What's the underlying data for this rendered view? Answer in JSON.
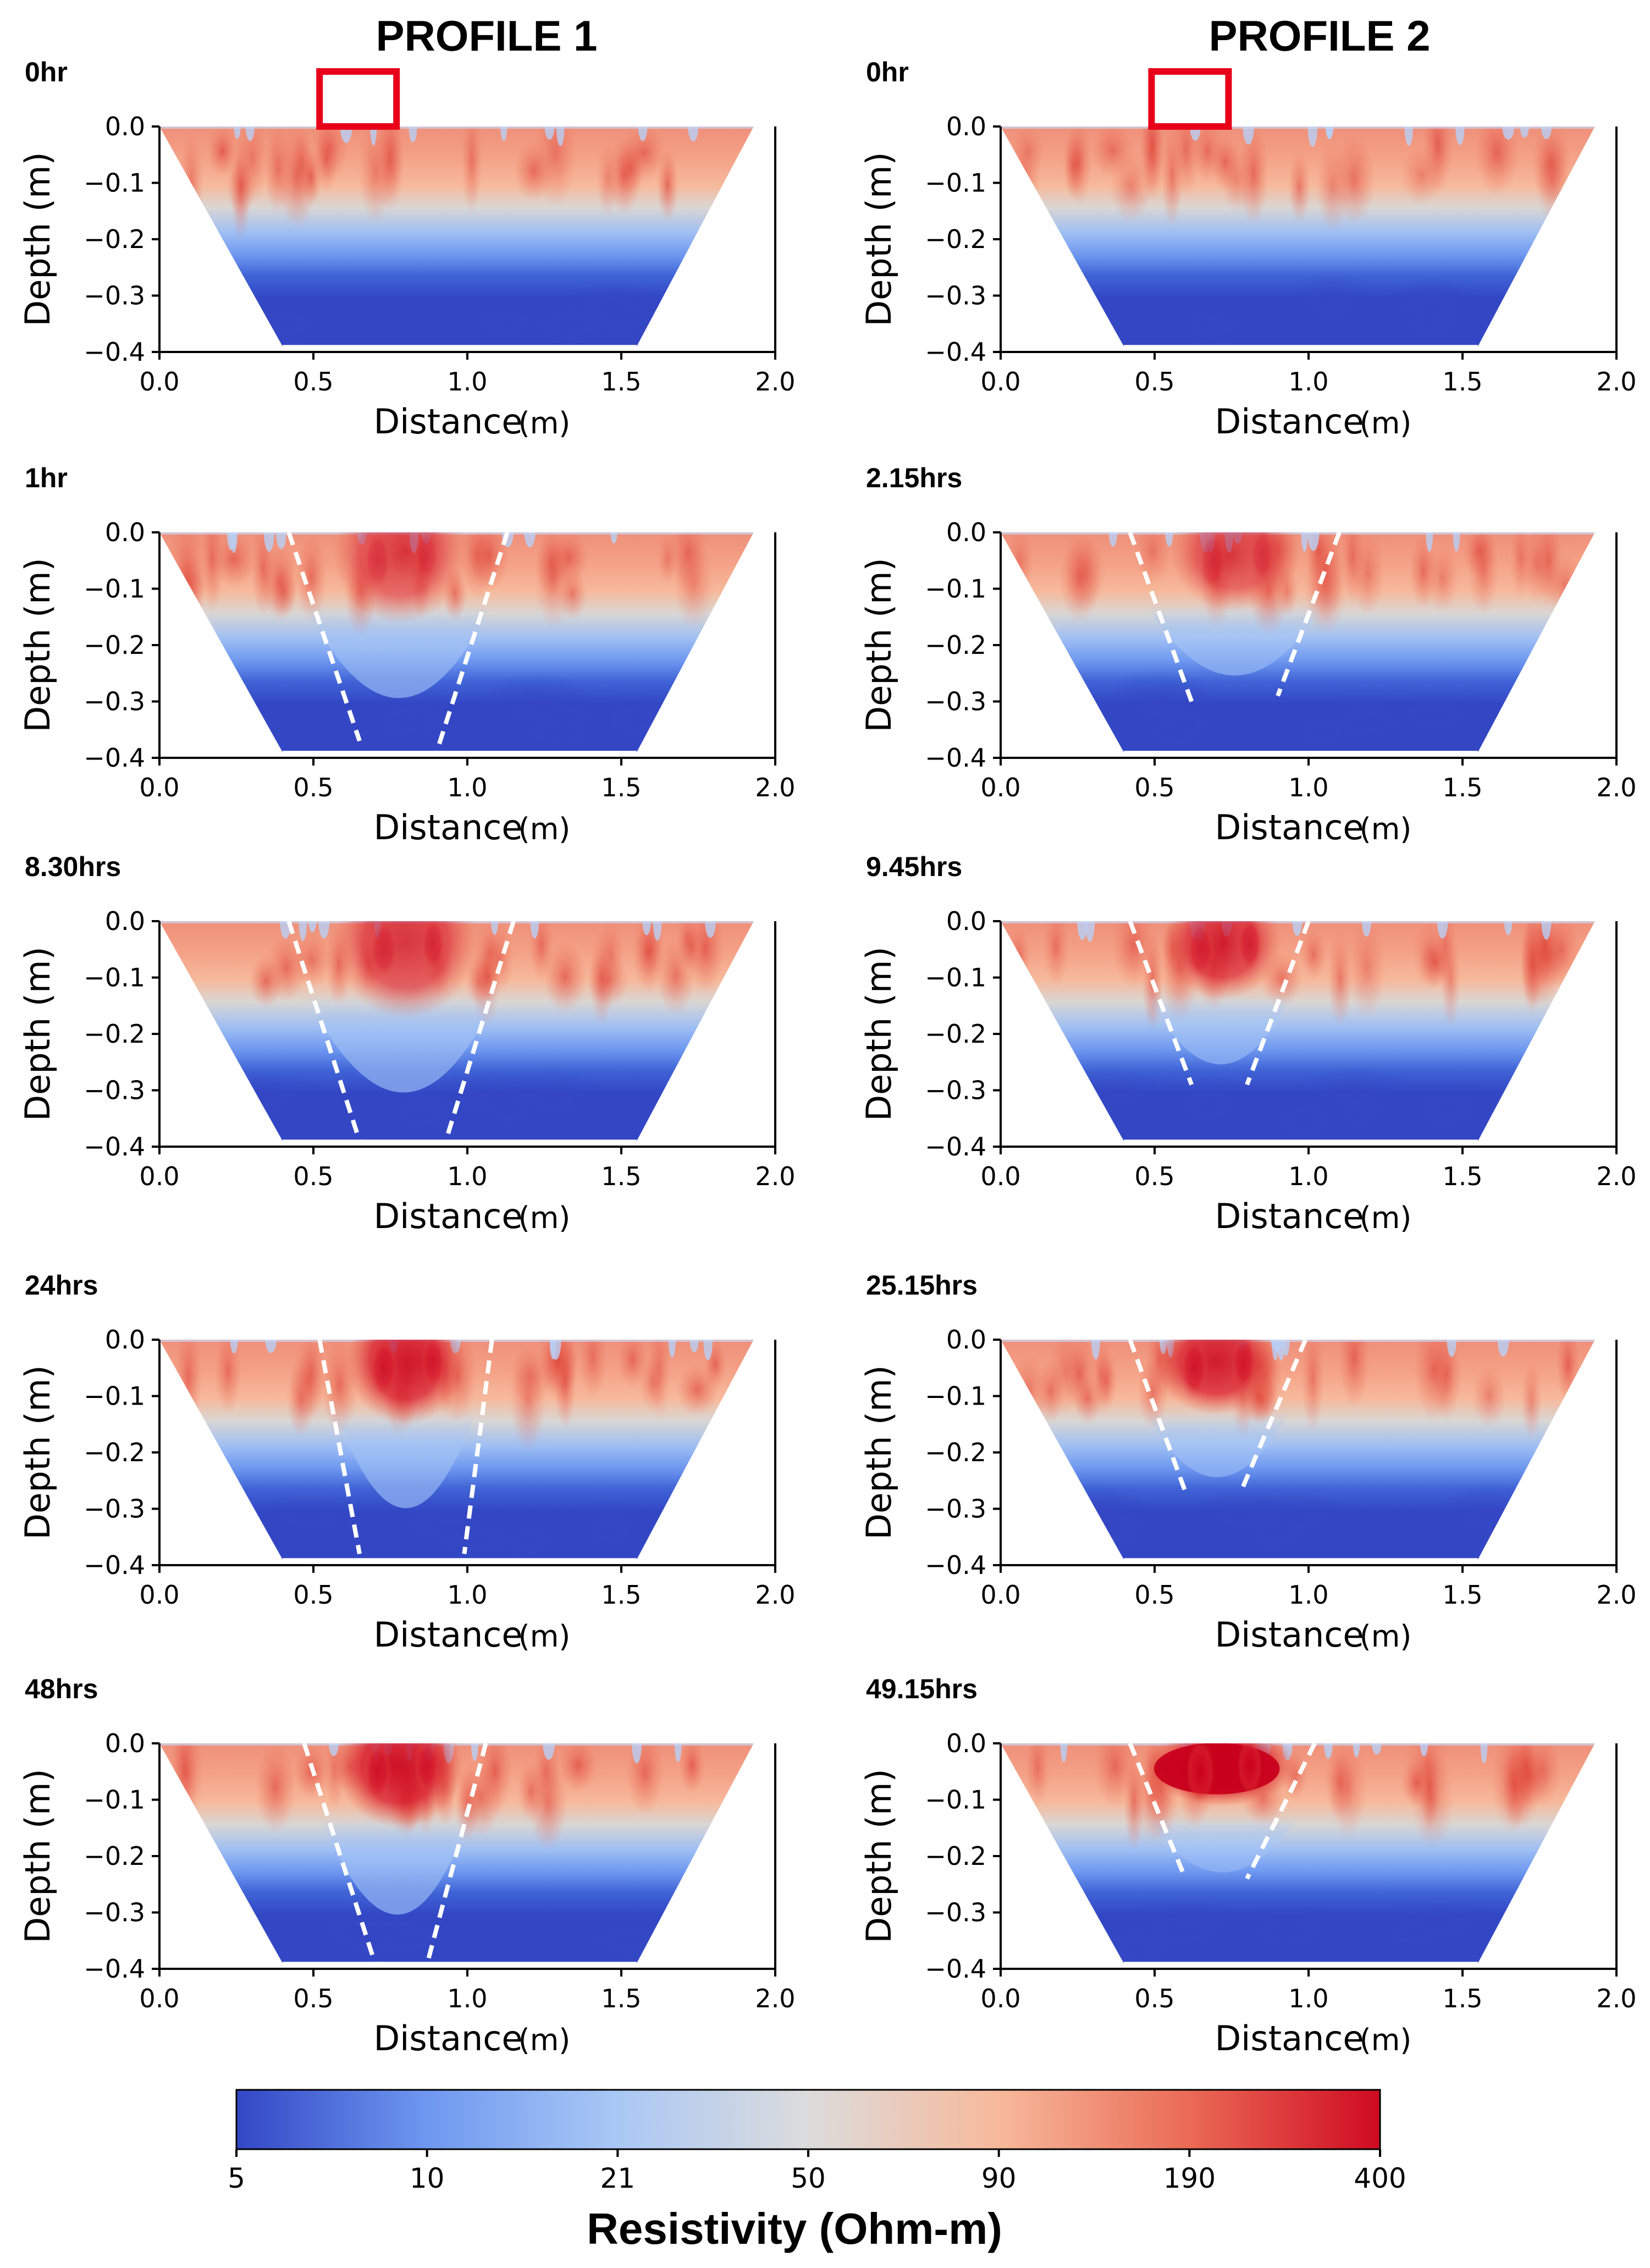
{
  "figure": {
    "profile_titles": [
      "PROFILE 1",
      "PROFILE 2"
    ],
    "target_box_color": "#e8001a",
    "boundary_line_color": "#ffffff"
  },
  "colorbar": {
    "title": "Resistivity (Ohm-m)",
    "ticks": [
      "5",
      "10",
      "21",
      "50",
      "90",
      "190",
      "400"
    ],
    "colors": [
      "#3347c5",
      "#6e98f0",
      "#aac8f5",
      "#dcdcdc",
      "#f7b99b",
      "#ea6a55",
      "#cf0a22"
    ]
  },
  "chart_data": [
    {
      "type": "heatmap",
      "profile": "PROFILE 1",
      "time_label": "0hr",
      "xlabel": "Distance",
      "xunit": "(m)",
      "ylabel": "Depth (m)",
      "xlim": [
        0.0,
        2.0
      ],
      "ylim": [
        -0.4,
        0.0
      ],
      "xticks": [
        "0.0",
        "0.5",
        "1.0",
        "1.5",
        "2.0"
      ],
      "yticks": [
        "0.0",
        "−0.1",
        "−0.2",
        "−0.3",
        "−0.4"
      ],
      "section_top_x": [
        0.0,
        1.93
      ],
      "section_bottom_x": [
        0.4,
        1.55
      ],
      "target_box_x": [
        0.52,
        0.77
      ],
      "anomaly": null
    },
    {
      "type": "heatmap",
      "profile": "PROFILE 2",
      "time_label": "0hr",
      "xlabel": "Distance",
      "xunit": "(m)",
      "ylabel": "Depth (m)",
      "xlim": [
        0.0,
        2.0
      ],
      "ylim": [
        -0.4,
        0.0
      ],
      "xticks": [
        "0.0",
        "0.5",
        "1.0",
        "1.5",
        "2.0"
      ],
      "yticks": [
        "0.0",
        "−0.1",
        "−0.2",
        "−0.3",
        "−0.4"
      ],
      "section_top_x": [
        0.0,
        1.93
      ],
      "section_bottom_x": [
        0.4,
        1.55
      ],
      "target_box_x": [
        0.49,
        0.74
      ],
      "anomaly": null
    },
    {
      "type": "heatmap",
      "profile": "PROFILE 1",
      "time_label": "1hr",
      "xlabel": "Distance",
      "xunit": "(m)",
      "ylabel": "Depth (m)",
      "xlim": [
        0.0,
        2.0
      ],
      "ylim": [
        -0.4,
        0.0
      ],
      "xticks": [
        "0.0",
        "0.5",
        "1.0",
        "1.5",
        "2.0"
      ],
      "yticks": [
        "0.0",
        "−0.1",
        "−0.2",
        "−0.3",
        "−0.4"
      ],
      "section_top_x": [
        0.0,
        1.93
      ],
      "section_bottom_x": [
        0.4,
        1.55
      ],
      "anomaly": {
        "left_top": [
          0.42,
          0.0
        ],
        "left_bottom": [
          0.65,
          -0.37
        ],
        "right_top": [
          1.13,
          0.0
        ],
        "right_bottom": [
          0.9,
          -0.39
        ],
        "center": 0.78,
        "depth": 0.22,
        "intensity": 0.25
      }
    },
    {
      "type": "heatmap",
      "profile": "PROFILE 2",
      "time_label": "2.15hrs",
      "xlabel": "Distance",
      "xunit": "(m)",
      "ylabel": "Depth (m)",
      "xlim": [
        0.0,
        2.0
      ],
      "ylim": [
        -0.4,
        0.0
      ],
      "xticks": [
        "0.0",
        "0.5",
        "1.0",
        "1.5",
        "2.0"
      ],
      "yticks": [
        "0.0",
        "−0.1",
        "−0.2",
        "−0.3",
        "−0.4"
      ],
      "section_top_x": [
        0.0,
        1.93
      ],
      "section_bottom_x": [
        0.4,
        1.55
      ],
      "anomaly": {
        "left_top": [
          0.42,
          0.0
        ],
        "left_bottom": [
          0.62,
          -0.3
        ],
        "right_top": [
          1.1,
          0.0
        ],
        "right_bottom": [
          0.9,
          -0.29
        ],
        "center": 0.76,
        "depth": 0.18,
        "intensity": 0.25
      }
    },
    {
      "type": "heatmap",
      "profile": "PROFILE 1",
      "time_label": "8.30hrs",
      "xlabel": "Distance",
      "xunit": "(m)",
      "ylabel": "Depth (m)",
      "xlim": [
        0.0,
        2.0
      ],
      "ylim": [
        -0.4,
        0.0
      ],
      "xticks": [
        "0.0",
        "0.5",
        "1.0",
        "1.5",
        "2.0"
      ],
      "yticks": [
        "0.0",
        "−0.1",
        "−0.2",
        "−0.3",
        "−0.4"
      ],
      "section_top_x": [
        0.0,
        1.93
      ],
      "section_bottom_x": [
        0.4,
        1.55
      ],
      "anomaly": {
        "left_top": [
          0.42,
          0.0
        ],
        "left_bottom": [
          0.65,
          -0.39
        ],
        "right_top": [
          1.15,
          0.0
        ],
        "right_bottom": [
          0.93,
          -0.39
        ],
        "center": 0.8,
        "depth": 0.24,
        "intensity": 0.35
      }
    },
    {
      "type": "heatmap",
      "profile": "PROFILE 2",
      "time_label": "9.45hrs",
      "xlabel": "Distance",
      "xunit": "(m)",
      "ylabel": "Depth (m)",
      "xlim": [
        0.0,
        2.0
      ],
      "ylim": [
        -0.4,
        0.0
      ],
      "xticks": [
        "0.0",
        "0.5",
        "1.0",
        "1.5",
        "2.0"
      ],
      "yticks": [
        "0.0",
        "−0.1",
        "−0.2",
        "−0.3",
        "−0.4"
      ],
      "section_top_x": [
        0.0,
        1.93
      ],
      "section_bottom_x": [
        0.4,
        1.55
      ],
      "anomaly": {
        "left_top": [
          0.42,
          0.0
        ],
        "left_bottom": [
          0.62,
          -0.29
        ],
        "right_top": [
          1.0,
          0.0
        ],
        "right_bottom": [
          0.8,
          -0.29
        ],
        "center": 0.72,
        "depth": 0.18,
        "intensity": 0.45
      }
    },
    {
      "type": "heatmap",
      "profile": "PROFILE 1",
      "time_label": "24hrs",
      "xlabel": "Distance",
      "xunit": "(m)",
      "ylabel": "Depth (m)",
      "xlim": [
        0.0,
        2.0
      ],
      "ylim": [
        -0.4,
        0.0
      ],
      "xticks": [
        "0.0",
        "0.5",
        "1.0",
        "1.5",
        "2.0"
      ],
      "yticks": [
        "0.0",
        "−0.1",
        "−0.2",
        "−0.3",
        "−0.4"
      ],
      "section_top_x": [
        0.0,
        1.93
      ],
      "section_bottom_x": [
        0.4,
        1.55
      ],
      "anomaly": {
        "left_top": [
          0.52,
          0.0
        ],
        "left_bottom": [
          0.65,
          -0.38
        ],
        "right_top": [
          1.08,
          0.0
        ],
        "right_bottom": [
          0.99,
          -0.38
        ],
        "center": 0.8,
        "depth": 0.2,
        "intensity": 0.55
      }
    },
    {
      "type": "heatmap",
      "profile": "PROFILE 2",
      "time_label": "25.15hrs",
      "xlabel": "Distance",
      "xunit": "(m)",
      "ylabel": "Depth (m)",
      "xlim": [
        0.0,
        2.0
      ],
      "ylim": [
        -0.4,
        0.0
      ],
      "xticks": [
        "0.0",
        "0.5",
        "1.0",
        "1.5",
        "2.0"
      ],
      "yticks": [
        "0.0",
        "−0.1",
        "−0.2",
        "−0.3",
        "−0.4"
      ],
      "section_top_x": [
        0.0,
        1.93
      ],
      "section_bottom_x": [
        0.4,
        1.55
      ],
      "anomaly": {
        "left_top": [
          0.42,
          0.0
        ],
        "left_bottom": [
          0.6,
          -0.27
        ],
        "right_top": [
          0.99,
          0.0
        ],
        "right_bottom": [
          0.78,
          -0.27
        ],
        "center": 0.7,
        "depth": 0.17,
        "intensity": 0.55
      }
    },
    {
      "type": "heatmap",
      "profile": "PROFILE 1",
      "time_label": "48hrs",
      "xlabel": "Distance",
      "xunit": "(m)",
      "ylabel": "Depth (m)",
      "xlim": [
        0.0,
        2.0
      ],
      "ylim": [
        -0.4,
        0.0
      ],
      "xticks": [
        "0.0",
        "0.5",
        "1.0",
        "1.5",
        "2.0"
      ],
      "yticks": [
        "0.0",
        "−0.1",
        "−0.2",
        "−0.3",
        "−0.4"
      ],
      "section_top_x": [
        0.0,
        1.93
      ],
      "section_bottom_x": [
        0.4,
        1.55
      ],
      "anomaly": {
        "left_top": [
          0.47,
          0.0
        ],
        "left_bottom": [
          0.7,
          -0.39
        ],
        "right_top": [
          1.06,
          0.0
        ],
        "right_bottom": [
          0.87,
          -0.39
        ],
        "center": 0.78,
        "depth": 0.2,
        "intensity": 0.6
      }
    },
    {
      "type": "heatmap",
      "profile": "PROFILE 2",
      "time_label": "49.15hrs",
      "xlabel": "Distance",
      "xunit": "(m)",
      "ylabel": "Depth (m)",
      "xlim": [
        0.0,
        2.0
      ],
      "ylim": [
        -0.4,
        0.0
      ],
      "xticks": [
        "0.0",
        "0.5",
        "1.0",
        "1.5",
        "2.0"
      ],
      "yticks": [
        "0.0",
        "−0.1",
        "−0.2",
        "−0.3",
        "−0.4"
      ],
      "section_top_x": [
        0.0,
        1.93
      ],
      "section_bottom_x": [
        0.4,
        1.55
      ],
      "anomaly": {
        "left_top": [
          0.42,
          0.0
        ],
        "left_bottom": [
          0.6,
          -0.24
        ],
        "right_top": [
          1.02,
          0.0
        ],
        "right_bottom": [
          0.8,
          -0.24
        ],
        "center": 0.72,
        "depth": 0.13,
        "intensity": 1.0
      }
    }
  ]
}
